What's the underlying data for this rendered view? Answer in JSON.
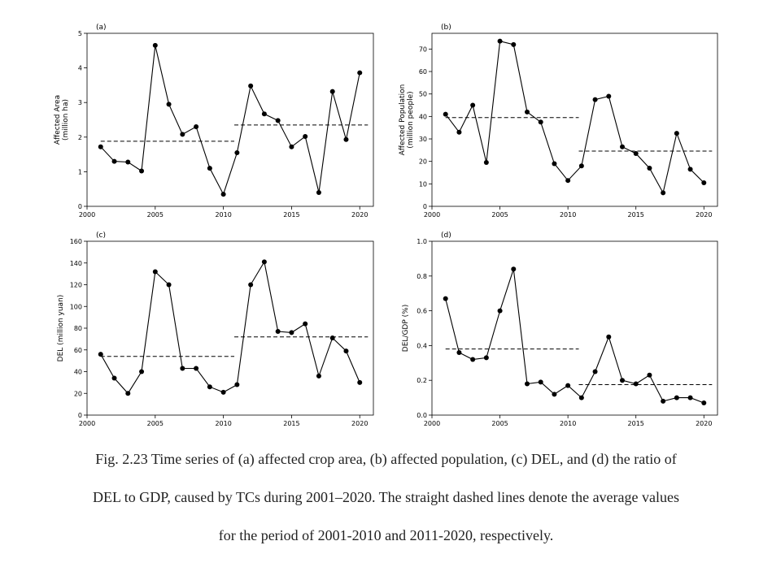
{
  "chart_data": [
    {
      "type": "line",
      "panel_label": "(a)",
      "ylabel": [
        "Affected Area",
        "(million ha)"
      ],
      "xlim": [
        2000,
        2021
      ],
      "ylim": [
        0,
        5
      ],
      "xticks": [
        2000,
        2005,
        2010,
        2015,
        2020
      ],
      "yticks": [
        0,
        1,
        2,
        3,
        4,
        5
      ],
      "x": [
        2001,
        2002,
        2003,
        2004,
        2005,
        2006,
        2007,
        2008,
        2009,
        2010,
        2011,
        2012,
        2013,
        2014,
        2015,
        2016,
        2017,
        2018,
        2019,
        2020
      ],
      "values": [
        1.72,
        1.3,
        1.28,
        1.02,
        4.65,
        2.95,
        2.08,
        2.3,
        1.1,
        0.35,
        1.55,
        3.48,
        2.67,
        2.48,
        1.72,
        2.02,
        0.4,
        3.32,
        1.93,
        3.86
      ],
      "averages": [
        {
          "x": [
            2001,
            2010.8
          ],
          "value": 1.88
        },
        {
          "x": [
            2010.8,
            2020.6
          ],
          "value": 2.35
        }
      ]
    },
    {
      "type": "line",
      "panel_label": "(b)",
      "ylabel": [
        "Affected Population",
        "(million people)"
      ],
      "xlim": [
        2000,
        2021
      ],
      "ylim": [
        0,
        77
      ],
      "xticks": [
        2000,
        2005,
        2010,
        2015,
        2020
      ],
      "yticks": [
        0,
        10,
        20,
        30,
        40,
        50,
        60,
        70
      ],
      "x": [
        2001,
        2002,
        2003,
        2004,
        2005,
        2006,
        2007,
        2008,
        2009,
        2010,
        2011,
        2012,
        2013,
        2014,
        2015,
        2016,
        2017,
        2018,
        2019,
        2020
      ],
      "values": [
        41,
        33,
        45,
        19.5,
        73.5,
        72,
        42,
        37.5,
        19,
        11.5,
        18,
        47.5,
        49,
        26.5,
        23.5,
        17,
        6,
        32.5,
        16.5,
        10.5
      ],
      "averages": [
        {
          "x": [
            2001,
            2010.8
          ],
          "value": 39.5
        },
        {
          "x": [
            2010.8,
            2020.6
          ],
          "value": 24.6
        }
      ]
    },
    {
      "type": "line",
      "panel_label": "(c)",
      "ylabel": [
        "DEL (million yuan)"
      ],
      "xlim": [
        2000,
        2021
      ],
      "ylim": [
        0,
        160
      ],
      "xticks": [
        2000,
        2005,
        2010,
        2015,
        2020
      ],
      "yticks": [
        0,
        20,
        40,
        60,
        80,
        100,
        120,
        140,
        160
      ],
      "x": [
        2001,
        2002,
        2003,
        2004,
        2005,
        2006,
        2007,
        2008,
        2009,
        2010,
        2011,
        2012,
        2013,
        2014,
        2015,
        2016,
        2017,
        2018,
        2019,
        2020
      ],
      "values": [
        56,
        34,
        20,
        40,
        132,
        120,
        43,
        43,
        26,
        21,
        28,
        120,
        141,
        77,
        76,
        84,
        36,
        71,
        59,
        30
      ],
      "averages": [
        {
          "x": [
            2001,
            2010.8
          ],
          "value": 54
        },
        {
          "x": [
            2010.8,
            2020.6
          ],
          "value": 72
        }
      ]
    },
    {
      "type": "line",
      "panel_label": "(d)",
      "ylabel": [
        "DEL/GDP (%)"
      ],
      "xlim": [
        2000,
        2021
      ],
      "ylim": [
        0,
        1.0
      ],
      "xticks": [
        2000,
        2005,
        2010,
        2015,
        2020
      ],
      "yticks": [
        0.0,
        0.2,
        0.4,
        0.6,
        0.8,
        1.0
      ],
      "x": [
        2001,
        2002,
        2003,
        2004,
        2005,
        2006,
        2007,
        2008,
        2009,
        2010,
        2011,
        2012,
        2013,
        2014,
        2015,
        2016,
        2017,
        2018,
        2019,
        2020
      ],
      "values": [
        0.67,
        0.36,
        0.32,
        0.33,
        0.6,
        0.84,
        0.18,
        0.19,
        0.12,
        0.17,
        0.1,
        0.25,
        0.45,
        0.2,
        0.18,
        0.23,
        0.08,
        0.1,
        0.1,
        0.07
      ],
      "averages": [
        {
          "x": [
            2001,
            2010.8
          ],
          "value": 0.38
        },
        {
          "x": [
            2010.8,
            2020.6
          ],
          "value": 0.175
        }
      ]
    }
  ],
  "caption": [
    "Fig. 2.23 Time series of (a) affected crop area, (b) affected population, (c) DEL, and (d) the ratio of",
    "DEL to GDP, caused by TCs during 2001–2020. The straight dashed lines denote the average values",
    "for the period of 2001-2010 and 2011-2020, respectively."
  ]
}
